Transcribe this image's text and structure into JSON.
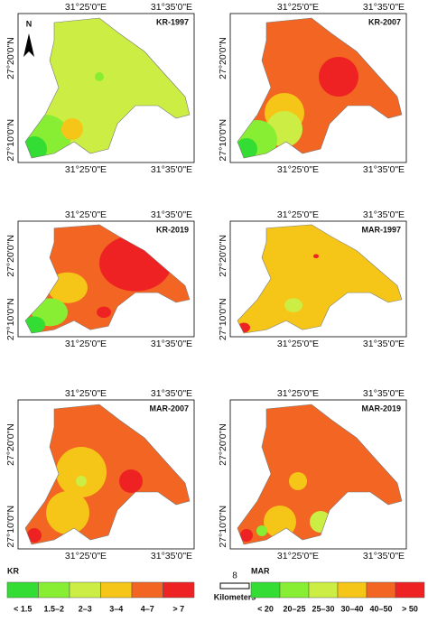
{
  "axes": {
    "lon": [
      "31°25'0\"E",
      "31°35'0\"E"
    ],
    "lat": [
      "27°20'0\"N",
      "27°10'0\"N"
    ]
  },
  "north": "N",
  "panels": [
    {
      "title": "KR-1997"
    },
    {
      "title": "KR-2007"
    },
    {
      "title": "KR-2019"
    },
    {
      "title": "MAR-1997"
    },
    {
      "title": "MAR-2007"
    },
    {
      "title": "MAR-2019"
    }
  ],
  "legend_kr": {
    "title": "KR",
    "items": [
      {
        "label": "< 1.5",
        "color": "#33dd33"
      },
      {
        "label": "1.5–2",
        "color": "#88ee33"
      },
      {
        "label": "2–3",
        "color": "#ccee44"
      },
      {
        "label": "3–4",
        "color": "#f5c518"
      },
      {
        "label": "4–7",
        "color": "#f26522"
      },
      {
        "label": "> 7",
        "color": "#ee2222"
      }
    ]
  },
  "scale_bar": {
    "distance": "8",
    "unit": "Kilometers"
  },
  "legend_mar": {
    "title": "MAR",
    "items": [
      {
        "label": "< 20",
        "color": "#33dd33"
      },
      {
        "label": "20–25",
        "color": "#88ee33"
      },
      {
        "label": "25–30",
        "color": "#ccee44"
      },
      {
        "label": "30–40",
        "color": "#f5c518"
      },
      {
        "label": "40–50",
        "color": "#f26522"
      },
      {
        "label": "> 50",
        "color": "#ee2222"
      }
    ]
  }
}
